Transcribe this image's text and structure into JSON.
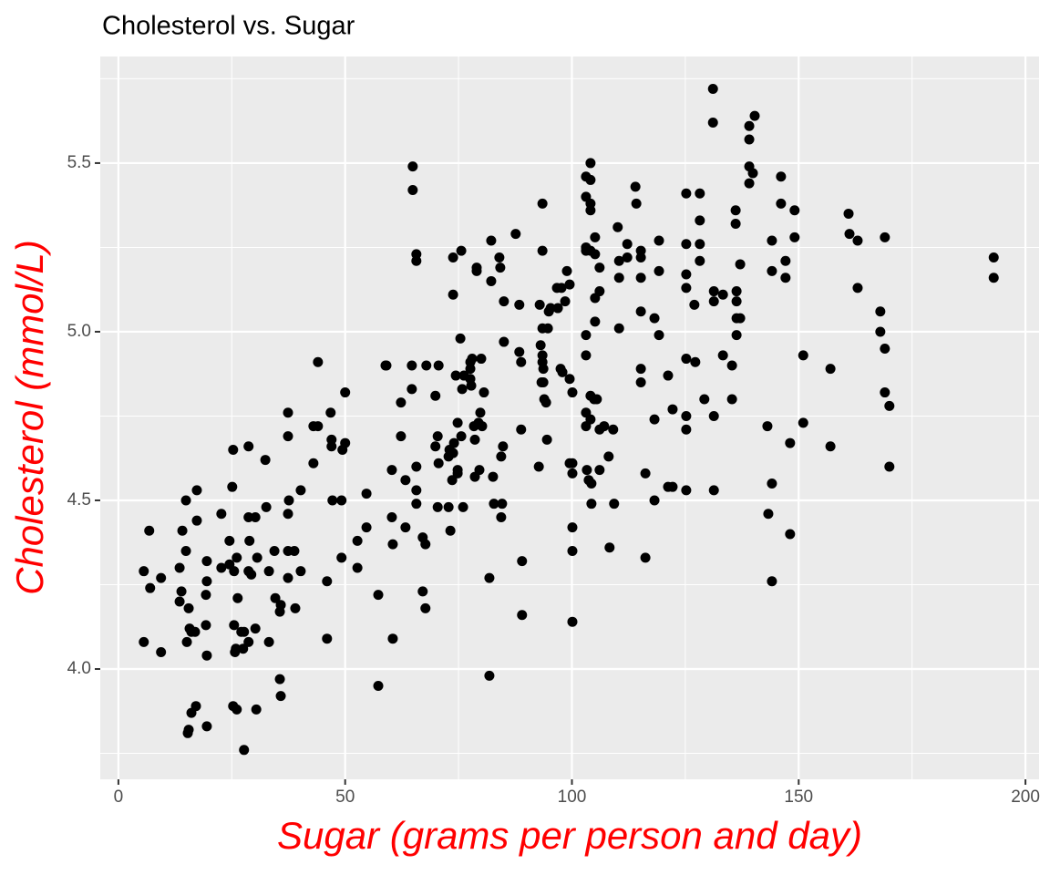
{
  "chart_data": {
    "type": "scatter",
    "title": "Cholesterol vs. Sugar",
    "x_label": "Sugar (grams per person and day)",
    "y_label": "Cholesterol (mmol/L)",
    "xlim": [
      -4,
      203
    ],
    "ylim": [
      3.673,
      5.816
    ],
    "xticks": [
      0,
      50,
      100,
      150,
      200
    ],
    "yticks": [
      {
        "value": 4,
        "label": "4.0"
      },
      4.5,
      {
        "value": 5,
        "label": "5.0"
      },
      5.5
    ],
    "x_minor_grid": [
      25,
      75,
      125,
      175
    ],
    "y_minor_grid": [
      3.75,
      4.25,
      4.75,
      5.25,
      5.75
    ],
    "grid": true,
    "color": "#000000",
    "panel_color": "#ebebeb",
    "label_color": "#ff0000",
    "x": [
      5.6,
      6.8,
      7.0,
      5.6,
      9.4,
      9.4,
      13.5,
      14.1,
      13.9,
      13.5,
      14.9,
      14.9,
      15.5,
      15.7,
      15.1,
      16.1,
      16.9,
      17.3,
      17.3,
      16.1,
      17.1,
      15.3,
      15.5,
      19.5,
      19.5,
      19.3,
      19.3,
      19.5,
      19.5,
      22.7,
      22.7,
      24.5,
      24.5,
      25.1,
      25.3,
      26.1,
      25.5,
      26.3,
      25.5,
      25.9,
      25.7,
      25.3,
      26.1,
      27.1,
      27.7,
      27.5,
      28.7,
      27.7,
      28.7,
      28.7,
      28.9,
      28.7,
      29.3,
      30.2,
      30.6,
      30.2,
      30.4,
      32.4,
      32.6,
      33.2,
      33.2,
      34.4,
      34.6,
      35.6,
      35.8,
      35.6,
      35.8,
      37.4,
      37.4,
      37.6,
      37.4,
      37.4,
      37.4,
      38.8,
      39.0,
      40.2,
      40.2,
      43.0,
      43.0,
      44.0,
      44.0,
      46.0,
      46.0,
      46.8,
      47.0,
      47.0,
      47.2,
      49.2,
      49.2,
      49.4,
      50.0,
      50.0,
      52.7,
      52.7,
      54.7,
      54.7,
      57.3,
      57.3,
      58.9,
      59.1,
      60.3,
      60.3,
      60.5,
      60.5,
      62.3,
      62.3,
      63.3,
      63.3,
      64.7,
      64.7,
      64.9,
      64.9,
      65.7,
      65.7,
      65.7,
      65.7,
      65.7,
      67.1,
      67.7,
      67.1,
      67.7,
      67.9,
      69.9,
      69.9,
      70.6,
      70.4,
      70.6,
      70.4,
      72.8,
      72.8,
      73.0,
      73.2,
      73.6,
      73.8,
      73.8,
      73.8,
      74.0,
      74.4,
      74.8,
      74.8,
      74.8,
      75.4,
      75.6,
      75.6,
      75.8,
      76.0,
      76.2,
      77.6,
      77.6,
      77.6,
      77.8,
      78.0,
      78.4,
      78.6,
      78.6,
      79.0,
      79.0,
      79.4,
      79.6,
      79.8,
      80.0,
      80.2,
      80.6,
      81.8,
      81.8,
      82.2,
      82.2,
      82.6,
      82.8,
      84.0,
      84.2,
      84.4,
      84.4,
      84.6,
      85.0,
      85.0,
      84.8,
      87.6,
      88.4,
      88.4,
      88.8,
      88.8,
      89.0,
      89.0,
      92.7,
      92.9,
      93.1,
      93.3,
      93.5,
      93.5,
      93.5,
      93.5,
      93.5,
      93.7,
      93.7,
      93.9,
      94.3,
      94.5,
      94.7,
      94.9,
      95.3,
      96.7,
      96.9,
      97.5,
      97.7,
      97.9,
      98.9,
      98.5,
      99.5,
      99.5,
      99.5,
      100.1,
      100.1,
      100.1,
      100.1,
      100.1,
      100.1,
      103.1,
      103.1,
      103.1,
      103.1,
      103.1,
      103.1,
      103.1,
      103.1,
      103.3,
      103.7,
      104.1,
      104.1,
      104.1,
      104.1,
      104.1,
      104.1,
      104.1,
      104.3,
      104.3,
      104.9,
      105.1,
      105.1,
      105.1,
      105.1,
      105.5,
      106.1,
      106.1,
      106.1,
      106.1,
      107.1,
      108.1,
      108.3,
      109.1,
      109.3,
      110.1,
      110.4,
      110.4,
      110.4,
      112.2,
      112.2,
      114.0,
      114.2,
      115.2,
      115.2,
      115.2,
      115.2,
      115.2,
      115.2,
      116.2,
      116.2,
      118.2,
      118.2,
      118.2,
      119.2,
      119.2,
      119.2,
      121.2,
      121.2,
      122.2,
      122.2,
      125.2,
      125.2,
      125.2,
      125.2,
      125.2,
      125.2,
      125.2,
      125.2,
      127.0,
      127.2,
      128.2,
      128.2,
      128.2,
      128.2,
      129.2,
      131.1,
      131.1,
      131.3,
      131.3,
      131.3,
      131.3,
      133.3,
      133.3,
      135.3,
      135.3,
      136.1,
      136.1,
      136.3,
      136.3,
      136.3,
      136.3,
      137.1,
      137.1,
      139.1,
      139.1,
      139.1,
      139.1,
      140.3,
      139.9,
      143.1,
      143.3,
      144.1,
      144.1,
      144.1,
      144.1,
      146.1,
      146.1,
      147.1,
      147.1,
      148.1,
      148.1,
      149.1,
      149.1,
      151.0,
      151.0,
      157.0,
      157.0,
      161.0,
      161.2,
      163.0,
      163.0,
      168.0,
      168.0,
      169.0,
      169.0,
      169.0,
      170.0,
      170.0,
      193.0,
      193.0
    ],
    "y": [
      4.29,
      4.41,
      4.24,
      4.08,
      4.27,
      4.05,
      4.3,
      4.41,
      4.23,
      4.2,
      4.5,
      4.35,
      4.18,
      4.12,
      4.08,
      4.11,
      4.11,
      4.53,
      4.44,
      3.87,
      3.89,
      3.81,
      3.82,
      4.32,
      4.26,
      4.22,
      4.13,
      4.04,
      3.83,
      4.46,
      4.3,
      4.38,
      4.31,
      4.54,
      4.65,
      4.33,
      4.29,
      4.21,
      4.13,
      4.06,
      4.05,
      3.89,
      3.88,
      4.11,
      4.11,
      4.06,
      4.08,
      3.76,
      4.66,
      4.45,
      4.38,
      4.29,
      4.28,
      4.45,
      4.33,
      4.12,
      3.88,
      4.62,
      4.48,
      4.29,
      4.08,
      4.35,
      4.21,
      4.17,
      4.19,
      3.97,
      3.92,
      4.76,
      4.69,
      4.5,
      4.46,
      4.35,
      4.27,
      4.35,
      4.18,
      4.53,
      4.29,
      4.61,
      4.72,
      4.72,
      4.91,
      4.26,
      4.09,
      4.76,
      4.68,
      4.66,
      4.5,
      4.5,
      4.33,
      4.65,
      4.67,
      4.82,
      4.38,
      4.3,
      4.52,
      4.42,
      4.22,
      3.95,
      4.9,
      4.9,
      4.59,
      4.45,
      4.37,
      4.09,
      4.79,
      4.69,
      4.56,
      4.42,
      4.83,
      4.9,
      5.49,
      5.42,
      5.23,
      5.21,
      4.53,
      4.49,
      4.6,
      4.39,
      4.37,
      4.23,
      4.18,
      4.9,
      4.81,
      4.66,
      4.9,
      4.69,
      4.61,
      4.48,
      4.48,
      4.63,
      4.65,
      4.41,
      4.56,
      4.64,
      5.22,
      5.11,
      4.67,
      4.87,
      4.73,
      4.59,
      4.58,
      4.98,
      5.24,
      4.69,
      4.83,
      4.48,
      4.87,
      4.91,
      4.89,
      4.86,
      4.84,
      4.92,
      4.72,
      4.68,
      4.57,
      5.19,
      5.18,
      4.73,
      4.59,
      4.76,
      4.92,
      4.72,
      4.82,
      4.27,
      3.98,
      5.27,
      5.15,
      4.57,
      4.49,
      5.22,
      5.19,
      4.63,
      4.45,
      4.49,
      5.09,
      4.97,
      4.66,
      5.29,
      5.08,
      4.94,
      4.71,
      4.91,
      4.16,
      4.32,
      4.6,
      5.08,
      4.96,
      4.85,
      5.38,
      5.24,
      5.01,
      4.93,
      4.91,
      4.89,
      4.85,
      4.8,
      4.79,
      4.68,
      5.01,
      5.06,
      5.07,
      5.13,
      5.07,
      4.89,
      5.13,
      4.88,
      5.18,
      5.09,
      5.14,
      4.86,
      4.61,
      4.58,
      4.61,
      4.42,
      4.35,
      4.14,
      4.82,
      5.46,
      5.4,
      5.25,
      5.24,
      4.99,
      4.93,
      4.76,
      4.72,
      4.59,
      4.56,
      5.5,
      5.45,
      5.38,
      5.36,
      5.24,
      4.81,
      4.74,
      4.55,
      4.49,
      4.8,
      5.28,
      5.23,
      5.1,
      5.03,
      4.8,
      5.19,
      5.12,
      4.71,
      4.59,
      4.72,
      4.63,
      4.36,
      4.71,
      4.49,
      5.31,
      5.21,
      5.01,
      5.16,
      5.26,
      5.22,
      5.43,
      5.38,
      5.24,
      5.22,
      5.16,
      5.06,
      4.89,
      4.85,
      4.33,
      4.58,
      5.04,
      4.74,
      4.5,
      5.27,
      5.18,
      4.99,
      4.87,
      4.54,
      4.77,
      4.54,
      5.41,
      5.26,
      5.17,
      5.13,
      4.92,
      4.75,
      4.71,
      4.53,
      5.08,
      4.91,
      5.41,
      5.33,
      5.26,
      5.21,
      4.8,
      5.72,
      5.62,
      5.12,
      5.09,
      4.75,
      4.53,
      5.11,
      4.93,
      4.9,
      4.8,
      5.36,
      5.32,
      5.12,
      5.09,
      5.04,
      4.99,
      5.2,
      5.04,
      5.61,
      5.57,
      5.49,
      5.44,
      5.64,
      5.47,
      4.72,
      4.46,
      5.27,
      5.18,
      4.55,
      4.26,
      5.46,
      5.38,
      5.21,
      5.16,
      4.67,
      4.4,
      5.36,
      5.28,
      4.93,
      4.73,
      4.89,
      4.66,
      5.35,
      5.29,
      5.27,
      5.13,
      5.06,
      5.0,
      5.28,
      4.95,
      4.82,
      4.78,
      4.6,
      5.22,
      5.16
    ]
  }
}
